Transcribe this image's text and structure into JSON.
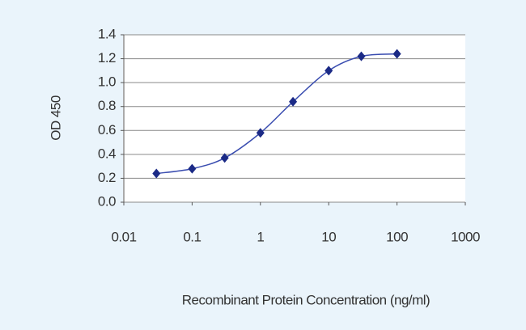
{
  "chart_data": {
    "type": "line",
    "x_label": "Recombinant Protein Concentration (ng/ml)",
    "y_label": "OD 450",
    "x": [
      0.03,
      0.1,
      0.3,
      1,
      3,
      10,
      30,
      100
    ],
    "series": [
      {
        "color": "#3a4db0",
        "marker_color": "#1b2a86",
        "values": [
          0.24,
          0.28,
          0.37,
          0.58,
          0.84,
          1.1,
          1.22,
          1.24
        ]
      }
    ],
    "xscale": "log",
    "xlim": [
      0.01,
      1000
    ],
    "xticks": [
      0.01,
      0.1,
      1,
      10,
      100,
      1000
    ],
    "ylim": [
      0,
      1.4
    ],
    "yticks": [
      {
        "value": 0,
        "label": "0.0"
      },
      0.2,
      0.4,
      0.6,
      0.8,
      {
        "value": 1,
        "label": "1.0"
      },
      1.2,
      1.4
    ],
    "grid": true
  }
}
